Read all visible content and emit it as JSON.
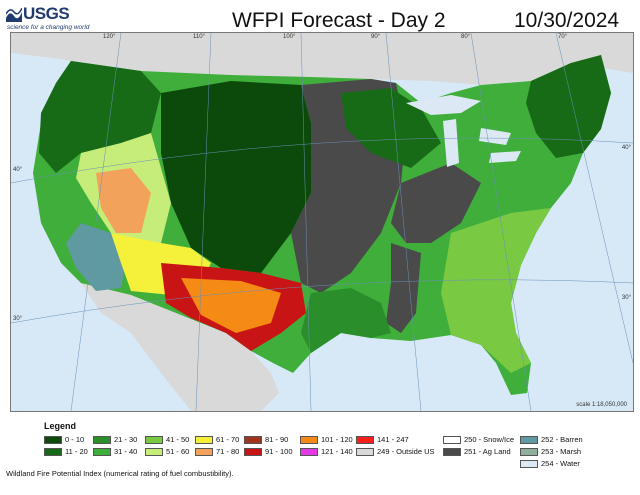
{
  "header": {
    "logo_text": "USGS",
    "logo_tagline": "science for a changing world",
    "title": "WFPI Forecast - Day 2",
    "date": "10/30/2024"
  },
  "map": {
    "longitude_ticks": [
      "120°",
      "110°",
      "100°",
      "90°",
      "80°",
      "70°"
    ],
    "latitude_ticks": [
      "40°",
      "30°",
      "40°",
      "30°"
    ],
    "scale": "scale 1:18,050,000"
  },
  "legend": {
    "title": "Legend",
    "items": [
      {
        "label": "0 - 10",
        "color": "#0b4a0b"
      },
      {
        "label": "11 - 20",
        "color": "#176b17"
      },
      {
        "label": "21 - 30",
        "color": "#2a8f2a"
      },
      {
        "label": "31 - 40",
        "color": "#3fae3a"
      },
      {
        "label": "41 - 50",
        "color": "#7ac943"
      },
      {
        "label": "51 - 60",
        "color": "#c6ec7a"
      },
      {
        "label": "61 - 70",
        "color": "#f5f03a"
      },
      {
        "label": "71 - 80",
        "color": "#f2a25a"
      },
      {
        "label": "81 - 90",
        "color": "#a3321c"
      },
      {
        "label": "91 - 100",
        "color": "#c81414"
      },
      {
        "label": "101 - 120",
        "color": "#f58a14"
      },
      {
        "label": "121 - 140",
        "color": "#e43ae4"
      },
      {
        "label": "141 - 247",
        "color": "#ff1e1e"
      },
      {
        "label": "249 - Outside US",
        "color": "#d9d9d9"
      },
      {
        "label": "250 - Snow/Ice",
        "color": "#ffffff"
      },
      {
        "label": "251 - Ag Land",
        "color": "#4a4a4a"
      },
      {
        "label": "252 - Barren",
        "color": "#5f9aa0"
      },
      {
        "label": "253 - Marsh",
        "color": "#8fb09a"
      },
      {
        "label": "254 - Water",
        "color": "#dce9f5"
      }
    ]
  },
  "footer_note": "Wildland Fire Potential Index (numerical rating of fuel combustibility)."
}
